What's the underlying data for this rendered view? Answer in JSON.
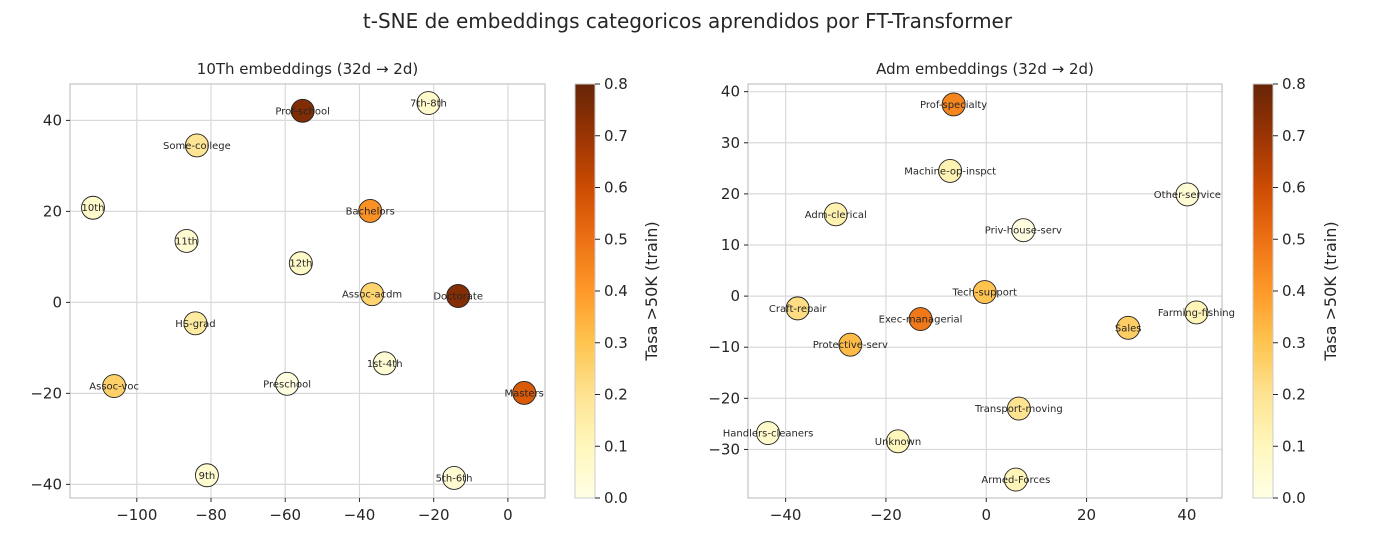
{
  "suptitle": "t-SNE de embeddings categoricos aprendidos por FT-Transformer",
  "colors": {
    "cmap": [
      "#ffffe5",
      "#fff7bc",
      "#fee391",
      "#fec44f",
      "#fe9929",
      "#ec7014",
      "#cc4c02",
      "#993404",
      "#662506"
    ],
    "grid": "#d9d9d9",
    "spine": "#cccccc",
    "text": "#262626",
    "marker_edge": "#222222"
  },
  "chart_data": [
    {
      "type": "scatter",
      "title": "10Th embeddings (32d → 2d)",
      "xlabel": "",
      "ylabel": "",
      "xlim": [
        -118,
        10
      ],
      "ylim": [
        -43,
        48
      ],
      "xticks": [
        -100,
        -80,
        -60,
        -40,
        -20,
        0
      ],
      "yticks": [
        -40,
        -20,
        0,
        20,
        40
      ],
      "grid": true,
      "colorbar": {
        "label": "Tasa >50K (train)",
        "range": [
          0,
          0.8
        ],
        "ticks": [
          0.0,
          0.1,
          0.2,
          0.3,
          0.4,
          0.5,
          0.6,
          0.7,
          0.8
        ]
      },
      "points": [
        {
          "label": "Prof-school",
          "x": -55.3,
          "y": 42.1,
          "value": 0.75
        },
        {
          "label": "7th-8th",
          "x": -21.4,
          "y": 43.8,
          "value": 0.06
        },
        {
          "label": "Some-college",
          "x": -83.8,
          "y": 34.5,
          "value": 0.19
        },
        {
          "label": "10th",
          "x": -111.8,
          "y": 20.8,
          "value": 0.06
        },
        {
          "label": "Bachelors",
          "x": -37.1,
          "y": 20.1,
          "value": 0.42
        },
        {
          "label": "11th",
          "x": -86.6,
          "y": 13.5,
          "value": 0.05
        },
        {
          "label": "12th",
          "x": -55.8,
          "y": 8.6,
          "value": 0.07
        },
        {
          "label": "Assoc-acdm",
          "x": -36.6,
          "y": 1.8,
          "value": 0.25
        },
        {
          "label": "Doctorate",
          "x": -13.4,
          "y": 1.4,
          "value": 0.74
        },
        {
          "label": "HS-grad",
          "x": -84.2,
          "y": -4.6,
          "value": 0.16
        },
        {
          "label": "1st-4th",
          "x": -33.2,
          "y": -13.4,
          "value": 0.04
        },
        {
          "label": "Assoc-voc",
          "x": -106.1,
          "y": -18.4,
          "value": 0.26
        },
        {
          "label": "Preschool",
          "x": -59.5,
          "y": -17.9,
          "value": 0.01
        },
        {
          "label": "Masters",
          "x": 4.4,
          "y": -19.9,
          "value": 0.56
        },
        {
          "label": "9th",
          "x": -81.1,
          "y": -38.0,
          "value": 0.05
        },
        {
          "label": "5th-6th",
          "x": -14.5,
          "y": -38.6,
          "value": 0.05
        }
      ]
    },
    {
      "type": "scatter",
      "title": "Adm embeddings (32d → 2d)",
      "xlabel": "",
      "ylabel": "",
      "xlim": [
        -47.5,
        47
      ],
      "ylim": [
        -39.5,
        41.5
      ],
      "xticks": [
        -40,
        -20,
        0,
        20,
        40
      ],
      "yticks": [
        -30,
        -20,
        -10,
        0,
        10,
        20,
        30,
        40
      ],
      "grid": true,
      "colorbar": {
        "label": "Tasa >50K (train)",
        "range": [
          0,
          0.8
        ],
        "ticks": [
          0.0,
          0.1,
          0.2,
          0.3,
          0.4,
          0.5,
          0.6,
          0.7,
          0.8
        ]
      },
      "points": [
        {
          "label": "Prof-specialty",
          "x": -6.5,
          "y": 37.5,
          "value": 0.45
        },
        {
          "label": "Machine-op-inspct",
          "x": -7.2,
          "y": 24.5,
          "value": 0.12
        },
        {
          "label": "Other-service",
          "x": 40.1,
          "y": 19.9,
          "value": 0.04
        },
        {
          "label": "Adm-clerical",
          "x": -30.0,
          "y": 16.0,
          "value": 0.13
        },
        {
          "label": "Priv-house-serv",
          "x": 7.4,
          "y": 12.9,
          "value": 0.01
        },
        {
          "label": "Tech-support",
          "x": -0.3,
          "y": 0.8,
          "value": 0.3
        },
        {
          "label": "Craft-repair",
          "x": -37.6,
          "y": -2.4,
          "value": 0.22
        },
        {
          "label": "Farming-fishing",
          "x": 41.9,
          "y": -3.2,
          "value": 0.11
        },
        {
          "label": "Exec-managerial",
          "x": -13.1,
          "y": -4.5,
          "value": 0.48
        },
        {
          "label": "Sales",
          "x": 28.3,
          "y": -6.2,
          "value": 0.27
        },
        {
          "label": "Protective-serv",
          "x": -27.1,
          "y": -9.5,
          "value": 0.32
        },
        {
          "label": "Transport-moving",
          "x": 6.5,
          "y": -22.0,
          "value": 0.2
        },
        {
          "label": "Handlers-cleaners",
          "x": -43.5,
          "y": -26.8,
          "value": 0.06
        },
        {
          "label": "Unknown",
          "x": -17.6,
          "y": -28.4,
          "value": 0.1
        },
        {
          "label": "Armed-Forces",
          "x": 5.9,
          "y": -35.9,
          "value": 0.11
        }
      ]
    }
  ]
}
